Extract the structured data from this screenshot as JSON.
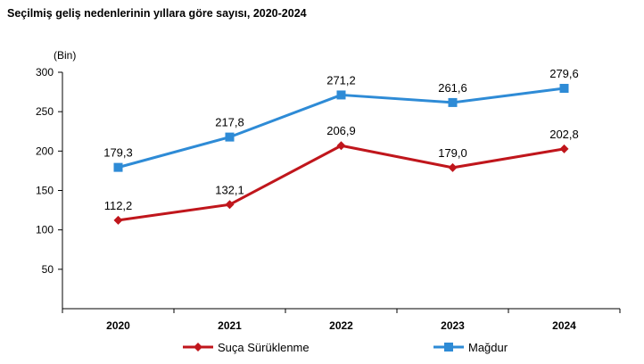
{
  "chart_data": {
    "type": "line",
    "title": "Seçilmiş geliş nedenlerinin yıllara göre sayısı, 2020-2024",
    "ylabel": "(Bin)",
    "xlabel": "",
    "categories": [
      "2020",
      "2021",
      "2022",
      "2023",
      "2024"
    ],
    "ylim": [
      0,
      300
    ],
    "yticks": [
      50,
      100,
      150,
      200,
      250,
      300
    ],
    "grid": false,
    "legend_position": "bottom",
    "series": [
      {
        "name": "Suça Sürüklenme",
        "values": [
          112.2,
          132.1,
          206.9,
          179.0,
          202.8
        ],
        "labels": [
          "112,2",
          "132,1",
          "206,9",
          "179,0",
          "202,8"
        ],
        "color": "#c0161c",
        "marker": "diamond"
      },
      {
        "name": "Mağdur",
        "values": [
          179.3,
          217.8,
          271.2,
          261.6,
          279.6
        ],
        "labels": [
          "179,3",
          "217,8",
          "271,2",
          "261,6",
          "279,6"
        ],
        "color": "#2e8bd6",
        "marker": "square"
      }
    ]
  }
}
